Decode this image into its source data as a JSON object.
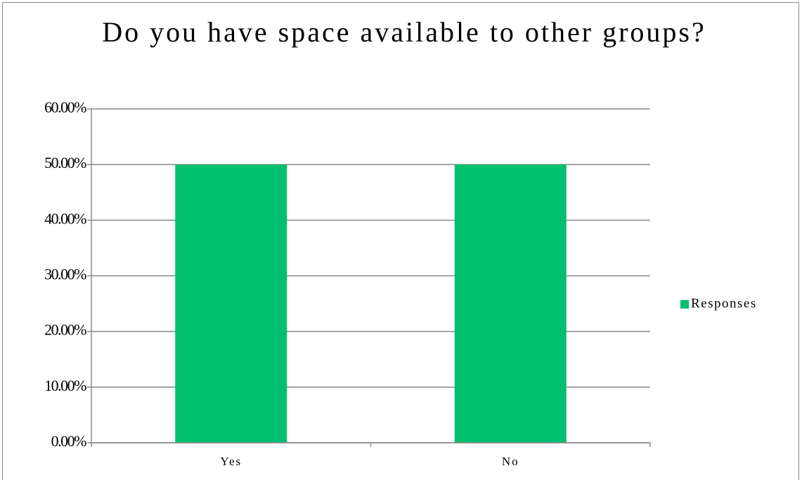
{
  "chart_data": {
    "type": "bar",
    "title": "Do you have space available to other groups?",
    "categories": [
      "Yes",
      "No"
    ],
    "series": [
      {
        "name": "Responses",
        "color": "#00bf6f",
        "values": [
          50,
          50
        ]
      }
    ],
    "ylim": [
      0,
      60
    ],
    "yticks": [
      {
        "value": 0,
        "label": "0.00%"
      },
      {
        "value": 10,
        "label": "10.00%"
      },
      {
        "value": 20,
        "label": "20.00%"
      },
      {
        "value": 30,
        "label": "30.00%"
      },
      {
        "value": 40,
        "label": "40.00%"
      },
      {
        "value": 50,
        "label": "50.00%"
      },
      {
        "value": 60,
        "label": "60.00%"
      }
    ],
    "grid": true,
    "legend": "right"
  }
}
